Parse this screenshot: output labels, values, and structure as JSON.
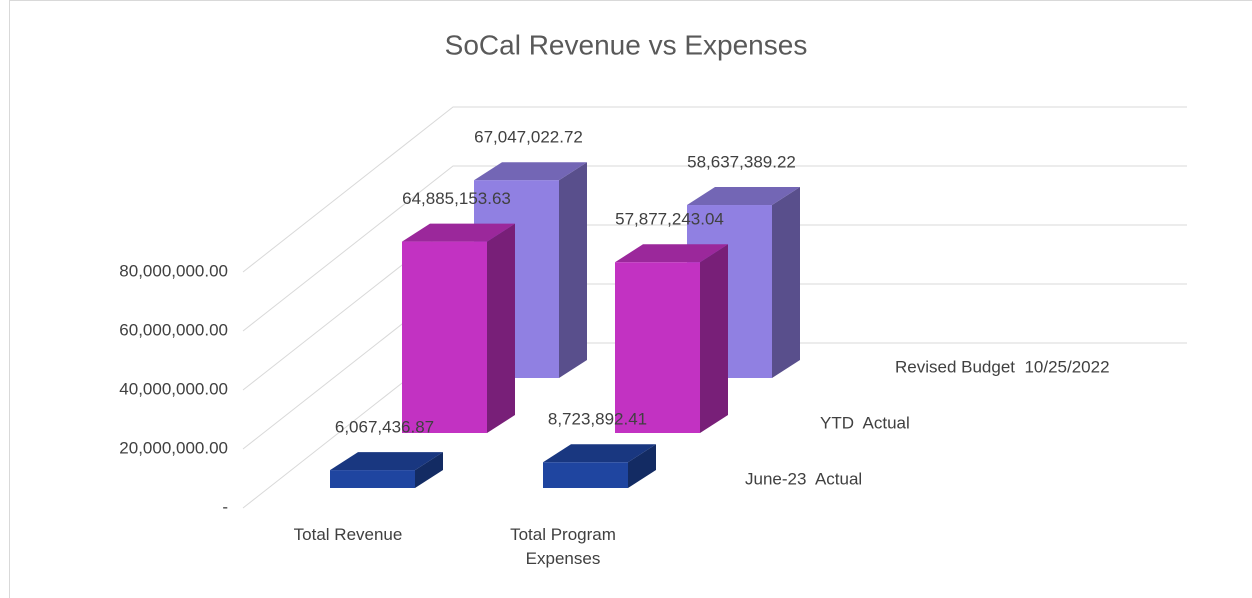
{
  "chart_data": {
    "type": "bar3d",
    "title": "SoCal Revenue vs Expenses",
    "categories": [
      "Total Revenue",
      "Total Program Expenses"
    ],
    "series": [
      {
        "name": "June-23  Actual",
        "color": "#1f45a0",
        "values": [
          6067436.87,
          8723892.41
        ],
        "value_labels": [
          "6,067,436.87",
          "8,723,892.41"
        ]
      },
      {
        "name": "YTD  Actual",
        "color": "#c232c2",
        "values": [
          64885153.63,
          57877243.04
        ],
        "value_labels": [
          "64,885,153.63",
          "57,877,243.04"
        ]
      },
      {
        "name": "Revised Budget  10/25/2022",
        "color": "#9080e2",
        "values": [
          67047022.72,
          58637389.22
        ],
        "value_labels": [
          "67,047,022.72",
          "58,637,389.22"
        ]
      }
    ],
    "ylim": [
      0,
      80000000
    ],
    "yticks": [
      {
        "value": 0,
        "label": "-"
      },
      {
        "value": 20000000,
        "label": "20,000,000.00"
      },
      {
        "value": 40000000,
        "label": "40,000,000.00"
      },
      {
        "value": 60000000,
        "label": "60,000,000.00"
      },
      {
        "value": 80000000,
        "label": "80,000,000.00"
      }
    ],
    "grid": true
  }
}
